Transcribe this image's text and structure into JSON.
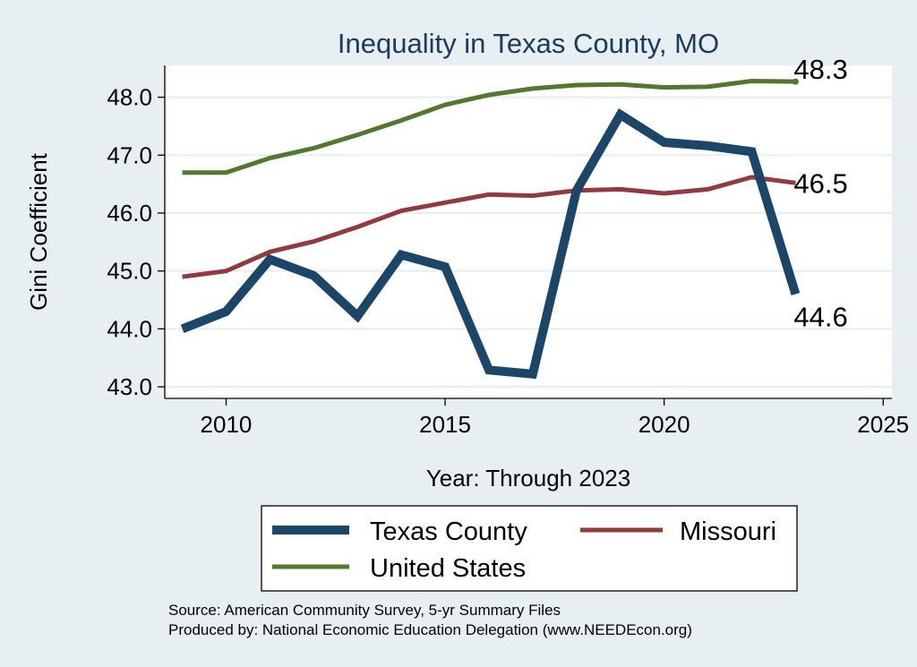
{
  "chart_data": {
    "type": "line",
    "title": "Inequality in Texas County, MO",
    "xlabel": "Year: Through 2023",
    "ylabel": "Gini Coefficient",
    "xlim": [
      2008.6,
      2025.2
    ],
    "ylim": [
      42.8,
      48.55
    ],
    "xticks": [
      2010,
      2015,
      2020,
      2025
    ],
    "yticks": [
      43.0,
      44.0,
      45.0,
      46.0,
      47.0,
      48.0
    ],
    "ytick_labels": [
      "43.0",
      "44.0",
      "45.0",
      "46.0",
      "47.0",
      "48.0"
    ],
    "grid": true,
    "x": [
      2009,
      2010,
      2011,
      2012,
      2013,
      2014,
      2015,
      2016,
      2017,
      2018,
      2019,
      2020,
      2021,
      2022,
      2023
    ],
    "series": [
      {
        "name": "Texas County",
        "color": "#1b4668",
        "values": [
          44.0,
          44.3,
          45.2,
          44.92,
          44.22,
          45.28,
          45.07,
          43.29,
          43.22,
          46.39,
          47.7,
          47.22,
          47.16,
          47.06,
          44.6
        ],
        "end_label": "44.6"
      },
      {
        "name": "Missouri",
        "color": "#923a3f",
        "values": [
          44.9,
          45.0,
          45.33,
          45.51,
          45.76,
          46.04,
          46.18,
          46.32,
          46.3,
          46.39,
          46.41,
          46.34,
          46.41,
          46.62,
          46.52
        ],
        "end_label": "46.5"
      },
      {
        "name": "United States",
        "color": "#52782e",
        "values": [
          46.7,
          46.7,
          46.95,
          47.12,
          47.35,
          47.6,
          47.87,
          48.04,
          48.15,
          48.21,
          48.22,
          48.17,
          48.18,
          48.28,
          48.27
        ],
        "end_label": "48.3"
      }
    ],
    "legend": {
      "position": "bottom",
      "entries": [
        "Texas County",
        "Missouri",
        "United States"
      ]
    },
    "notes": [
      "Source: American Community Survey, 5-yr Summary Files",
      "Produced by: National Economic Education Delegation (www.NEEDEcon.org)"
    ]
  }
}
